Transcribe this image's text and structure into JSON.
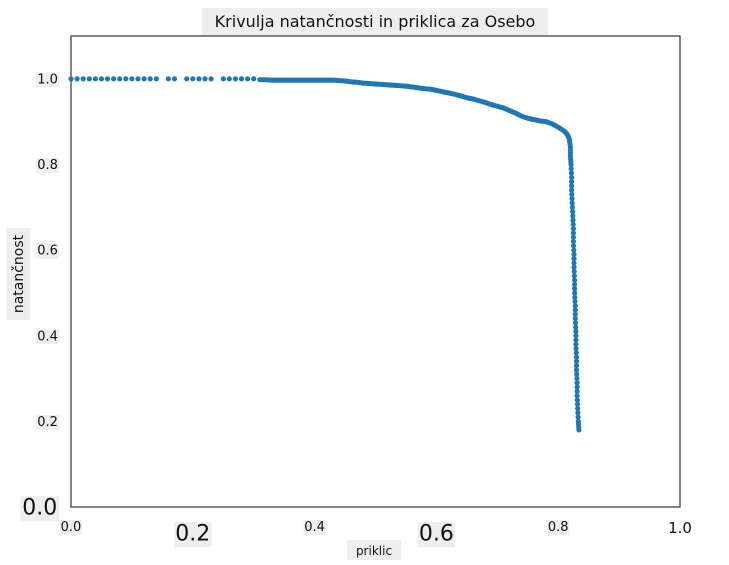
{
  "chart_data": {
    "type": "scatter",
    "title": "Krivulja natančnosti in priklica za Osebo",
    "xlabel": "priklic",
    "ylabel": "natančnost",
    "xlim": [
      0.0,
      1.0
    ],
    "ylim": [
      0.0,
      1.1
    ],
    "grid": false,
    "point_color": "#1f77b4",
    "x_ticks": [
      {
        "value": 0.0,
        "label": "0.0",
        "size": "small"
      },
      {
        "value": 0.2,
        "label": "0.2",
        "size": "large"
      },
      {
        "value": 0.4,
        "label": "0.4",
        "size": "small"
      },
      {
        "value": 0.6,
        "label": "0.6",
        "size": "large"
      },
      {
        "value": 0.8,
        "label": "0.8",
        "size": "small"
      },
      {
        "value": 1.0,
        "label": "1.0",
        "size": "medium"
      }
    ],
    "y_ticks": [
      {
        "value": 0.0,
        "label": "0.0",
        "size": "large"
      },
      {
        "value": 0.2,
        "label": "0.2",
        "size": "small"
      },
      {
        "value": 0.4,
        "label": "0.4",
        "size": "small"
      },
      {
        "value": 0.6,
        "label": "0.6",
        "size": "small"
      },
      {
        "value": 0.8,
        "label": "0.8",
        "size": "small"
      },
      {
        "value": 1.0,
        "label": "1.0",
        "size": "small"
      }
    ],
    "series": [
      {
        "points": [
          [
            0.0,
            1.0
          ],
          [
            0.01,
            1.0
          ],
          [
            0.02,
            1.0
          ],
          [
            0.03,
            1.0
          ],
          [
            0.04,
            1.0
          ],
          [
            0.05,
            1.0
          ],
          [
            0.06,
            1.0
          ],
          [
            0.07,
            1.0
          ],
          [
            0.08,
            1.0
          ],
          [
            0.09,
            1.0
          ],
          [
            0.1,
            1.0
          ],
          [
            0.11,
            1.0
          ],
          [
            0.12,
            1.0
          ],
          [
            0.13,
            1.0
          ],
          [
            0.14,
            1.0
          ],
          [
            0.16,
            1.0
          ],
          [
            0.17,
            1.0
          ],
          [
            0.19,
            1.0
          ],
          [
            0.2,
            1.0
          ],
          [
            0.21,
            1.0
          ],
          [
            0.22,
            1.0
          ],
          [
            0.23,
            1.0
          ],
          [
            0.25,
            1.0
          ],
          [
            0.26,
            1.0
          ],
          [
            0.27,
            1.0
          ],
          [
            0.28,
            1.0
          ],
          [
            0.29,
            1.0
          ],
          [
            0.3,
            1.0
          ],
          [
            0.31,
            0.998
          ],
          [
            0.32,
            0.998
          ],
          [
            0.33,
            0.997
          ],
          [
            0.34,
            0.997
          ],
          [
            0.35,
            0.997
          ],
          [
            0.36,
            0.997
          ],
          [
            0.37,
            0.997
          ],
          [
            0.38,
            0.997
          ],
          [
            0.39,
            0.997
          ],
          [
            0.4,
            0.997
          ],
          [
            0.41,
            0.997
          ],
          [
            0.42,
            0.997
          ],
          [
            0.43,
            0.997
          ],
          [
            0.44,
            0.996
          ],
          [
            0.45,
            0.995
          ],
          [
            0.46,
            0.993
          ],
          [
            0.47,
            0.992
          ],
          [
            0.48,
            0.99
          ],
          [
            0.49,
            0.989
          ],
          [
            0.5,
            0.988
          ],
          [
            0.51,
            0.987
          ],
          [
            0.52,
            0.986
          ],
          [
            0.53,
            0.985
          ],
          [
            0.54,
            0.984
          ],
          [
            0.55,
            0.983
          ],
          [
            0.56,
            0.981
          ],
          [
            0.57,
            0.979
          ],
          [
            0.58,
            0.977
          ],
          [
            0.59,
            0.976
          ],
          [
            0.6,
            0.973
          ],
          [
            0.61,
            0.97
          ],
          [
            0.62,
            0.967
          ],
          [
            0.63,
            0.964
          ],
          [
            0.64,
            0.96
          ],
          [
            0.65,
            0.956
          ],
          [
            0.66,
            0.953
          ],
          [
            0.67,
            0.949
          ],
          [
            0.68,
            0.945
          ],
          [
            0.69,
            0.94
          ],
          [
            0.7,
            0.936
          ],
          [
            0.71,
            0.932
          ],
          [
            0.72,
            0.926
          ],
          [
            0.73,
            0.92
          ],
          [
            0.74,
            0.913
          ],
          [
            0.75,
            0.908
          ],
          [
            0.76,
            0.905
          ],
          [
            0.77,
            0.902
          ],
          [
            0.78,
            0.9
          ],
          [
            0.79,
            0.895
          ],
          [
            0.8,
            0.887
          ],
          [
            0.81,
            0.878
          ],
          [
            0.815,
            0.87
          ],
          [
            0.818,
            0.86
          ],
          [
            0.82,
            0.84
          ],
          [
            0.82,
            0.82
          ],
          [
            0.821,
            0.8
          ],
          [
            0.822,
            0.77
          ],
          [
            0.822,
            0.74
          ],
          [
            0.823,
            0.71
          ],
          [
            0.824,
            0.68
          ],
          [
            0.825,
            0.65
          ],
          [
            0.825,
            0.62
          ],
          [
            0.826,
            0.59
          ],
          [
            0.826,
            0.56
          ],
          [
            0.827,
            0.53
          ],
          [
            0.827,
            0.5
          ],
          [
            0.828,
            0.47
          ],
          [
            0.828,
            0.44
          ],
          [
            0.829,
            0.41
          ],
          [
            0.829,
            0.38
          ],
          [
            0.83,
            0.35
          ],
          [
            0.83,
            0.32
          ],
          [
            0.831,
            0.29
          ],
          [
            0.831,
            0.26
          ],
          [
            0.832,
            0.23
          ],
          [
            0.833,
            0.2
          ],
          [
            0.834,
            0.18
          ]
        ]
      }
    ]
  }
}
